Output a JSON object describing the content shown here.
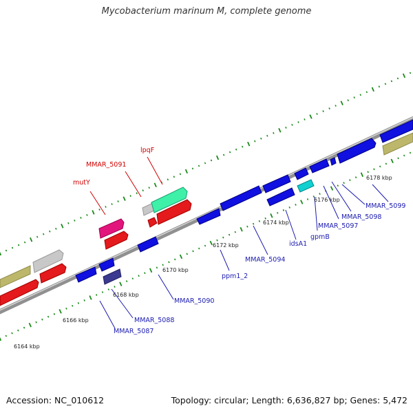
{
  "title": "Mycobacterium marinum M, complete genome",
  "footer": {
    "accession": "Accession: NC_010612",
    "stats": "Topology: circular; Length: 6,636,827 bp; Genes: 5,472"
  },
  "colors": {
    "forward_gene": "#e41a1c",
    "reverse_gene": "#1010e0",
    "forward_label": "#d00000",
    "reverse_label": "#1a1ab0",
    "backbone": "#888888",
    "tick": "#1a8a1a",
    "khaki": "#bdb76b",
    "grey": "#c0c0c0",
    "pink": "#e2157d",
    "mint": "#3ef0a8",
    "cyan": "#12d0d0",
    "navy": "#3a3a90"
  },
  "scale_labels": [
    "6164 kbp",
    "6166 kbp",
    "6168 kbp",
    "6170 kbp",
    "6172 kbp",
    "6174 kbp",
    "6176 kbp",
    "6178 kbp"
  ],
  "forward_labels": [
    "mutY",
    "MMAR_5091",
    "lpqF"
  ],
  "reverse_labels": [
    "MMAR_5087",
    "MMAR_5088",
    "MMAR_5090",
    "ppm1_2",
    "MMAR_5094",
    "idsA1",
    "gpmB",
    "MMAR_5097",
    "MMAR_5098",
    "MMAR_5099"
  ]
}
